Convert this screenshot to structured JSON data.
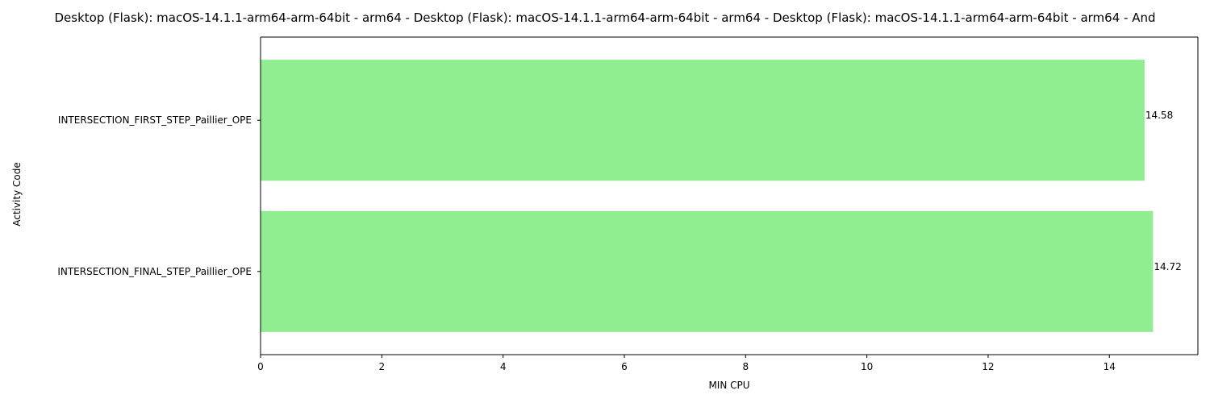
{
  "chart_data": {
    "type": "bar",
    "orientation": "horizontal",
    "title": "Desktop (Flask): macOS-14.1.1-arm64-arm-64bit - arm64 - Desktop (Flask): macOS-14.1.1-arm64-arm-64bit - arm64 - Desktop (Flask): macOS-14.1.1-arm64-arm-64bit - arm64 - And",
    "xlabel": "MIN CPU",
    "ylabel": "Activity Code",
    "categories": [
      "INTERSECTION_FIRST_STEP_Paillier_OPE",
      "INTERSECTION_FINAL_STEP_Paillier_OPE"
    ],
    "values": [
      14.58,
      14.72
    ],
    "value_labels": [
      "14.58",
      "14.72"
    ],
    "xlim": [
      0,
      15.46
    ],
    "xticks": [
      0,
      2,
      4,
      6,
      8,
      10,
      12,
      14
    ],
    "xtick_labels": [
      "0",
      "2",
      "4",
      "6",
      "8",
      "10",
      "12",
      "14"
    ],
    "bar_color": "#90ee90",
    "grid": false,
    "legend": "none"
  }
}
